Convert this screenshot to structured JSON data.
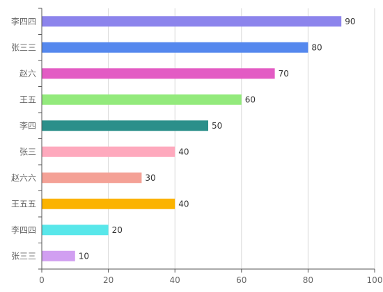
{
  "chart_data": {
    "type": "bar",
    "orientation": "horizontal",
    "title": "",
    "xlabel": "",
    "ylabel": "",
    "categories": [
      "李四四",
      "张三三",
      "赵六",
      "王五",
      "李四",
      "张三",
      "赵六六",
      "王五五",
      "李四四",
      "张三三"
    ],
    "values": [
      90,
      80,
      70,
      60,
      50,
      40,
      30,
      40,
      20,
      10
    ],
    "colors": [
      "#8c84ec",
      "#5588ee",
      "#e35bc4",
      "#93ea7c",
      "#2b8f8a",
      "#fea9bd",
      "#f4a196",
      "#fbb300",
      "#58e7ea",
      "#d19ff1"
    ],
    "xlim": [
      0,
      100
    ],
    "xticks": [
      "0",
      "20",
      "40",
      "60",
      "80",
      "100"
    ],
    "grid": true,
    "data_labels": true
  }
}
